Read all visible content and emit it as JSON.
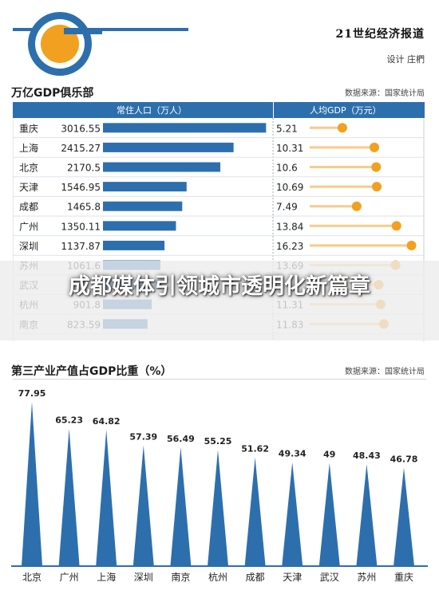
{
  "header": {
    "newspaper": "21世纪经济报道",
    "designer": "设计 庄椚"
  },
  "banner": {
    "title": "成都媒体引领城市透明化新篇章"
  },
  "chart_data": [
    {
      "type": "bar",
      "title": "万亿GDP俱乐部",
      "source": "数据来源：国家统计局",
      "categories": [
        "重庆",
        "上海",
        "北京",
        "天津",
        "成都",
        "广州",
        "深圳",
        "苏州",
        "武汉",
        "杭州",
        "南京"
      ],
      "series": [
        {
          "name": "常住人口（万人）",
          "values": [
            3016.55,
            2415.27,
            2170.5,
            1546.95,
            1465.8,
            1350.11,
            1137.87,
            1061.6,
            1089.29,
            901.8,
            823.59
          ]
        },
        {
          "name": "人均GDP（万元）",
          "values": [
            5.21,
            10.31,
            10.6,
            10.69,
            7.49,
            13.84,
            16.23,
            13.69,
            11.0,
            11.31,
            11.83
          ]
        }
      ],
      "value_labels": [
        [
          "3016.55",
          "2415.27",
          "2170.5",
          "1546.95",
          "1465.8",
          "1350.11",
          "1137.87",
          "1061.6",
          "",
          "901.8",
          "823.59"
        ],
        [
          "5.21",
          "10.31",
          "10.6",
          "10.69",
          "7.49",
          "13.84",
          "16.23",
          "13.69",
          "",
          "11.31",
          "11.83"
        ]
      ],
      "pop_max": 3100,
      "gdp_max": 16.8,
      "colors": {
        "header": "#2d6fad",
        "bar": "#2d6fad",
        "dot": "#f2a020",
        "line": "#f7cb8a"
      }
    },
    {
      "type": "bar",
      "title": "第三产业产值占GDP比重（%）",
      "source": "数据来源：国家统计局",
      "categories": [
        "北京",
        "广州",
        "上海",
        "深圳",
        "南京",
        "杭州",
        "成都",
        "天津",
        "武汉",
        "苏州",
        "重庆"
      ],
      "values": [
        77.95,
        65.23,
        64.82,
        57.39,
        56.49,
        55.25,
        51.62,
        49.34,
        49,
        48.43,
        46.78
      ],
      "value_labels": [
        "77.95",
        "65.23",
        "64.82",
        "57.39",
        "56.49",
        "55.25",
        "51.62",
        "49.34",
        "49",
        "48.43",
        "46.78"
      ],
      "ylim": [
        0,
        80
      ],
      "colors": {
        "bar": "#2d6fad"
      }
    }
  ]
}
